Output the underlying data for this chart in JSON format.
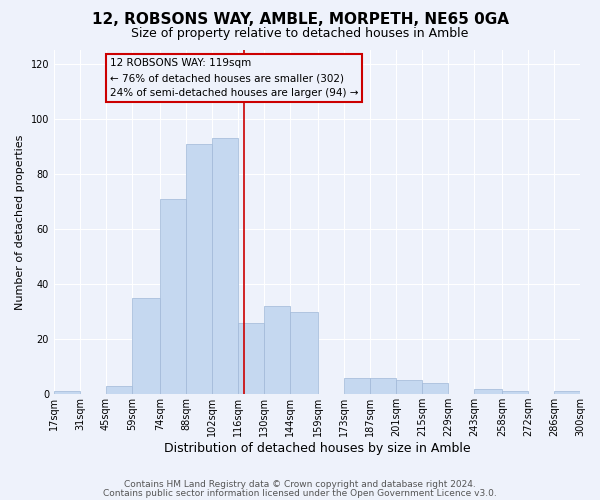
{
  "title": "12, ROBSONS WAY, AMBLE, MORPETH, NE65 0GA",
  "subtitle": "Size of property relative to detached houses in Amble",
  "xlabel": "Distribution of detached houses by size in Amble",
  "ylabel": "Number of detached properties",
  "bin_edges": [
    17,
    31,
    45,
    59,
    74,
    88,
    102,
    116,
    130,
    144,
    159,
    173,
    187,
    201,
    215,
    229,
    243,
    258,
    272,
    286,
    300
  ],
  "bar_heights": [
    1,
    0,
    3,
    35,
    71,
    91,
    93,
    26,
    32,
    30,
    0,
    6,
    6,
    5,
    4,
    0,
    2,
    1,
    0,
    1
  ],
  "bar_color": "#c5d8f0",
  "bar_edge_color": "#a0b8d8",
  "vline_x": 119,
  "vline_color": "#cc0000",
  "annotation_text": "12 ROBSONS WAY: 119sqm\n← 76% of detached houses are smaller (302)\n24% of semi-detached houses are larger (94) →",
  "annotation_box_edge_color": "#cc0000",
  "ylim": [
    0,
    125
  ],
  "yticks": [
    0,
    20,
    40,
    60,
    80,
    100,
    120
  ],
  "tick_labels": [
    "17sqm",
    "31sqm",
    "45sqm",
    "59sqm",
    "74sqm",
    "88sqm",
    "102sqm",
    "116sqm",
    "130sqm",
    "144sqm",
    "159sqm",
    "173sqm",
    "187sqm",
    "201sqm",
    "215sqm",
    "229sqm",
    "243sqm",
    "258sqm",
    "272sqm",
    "286sqm",
    "300sqm"
  ],
  "footer_line1": "Contains HM Land Registry data © Crown copyright and database right 2024.",
  "footer_line2": "Contains public sector information licensed under the Open Government Licence v3.0.",
  "background_color": "#eef2fb",
  "grid_color": "#ffffff",
  "title_fontsize": 11,
  "subtitle_fontsize": 9,
  "ylabel_fontsize": 8,
  "xlabel_fontsize": 9,
  "tick_fontsize": 7,
  "footer_fontsize": 6.5
}
